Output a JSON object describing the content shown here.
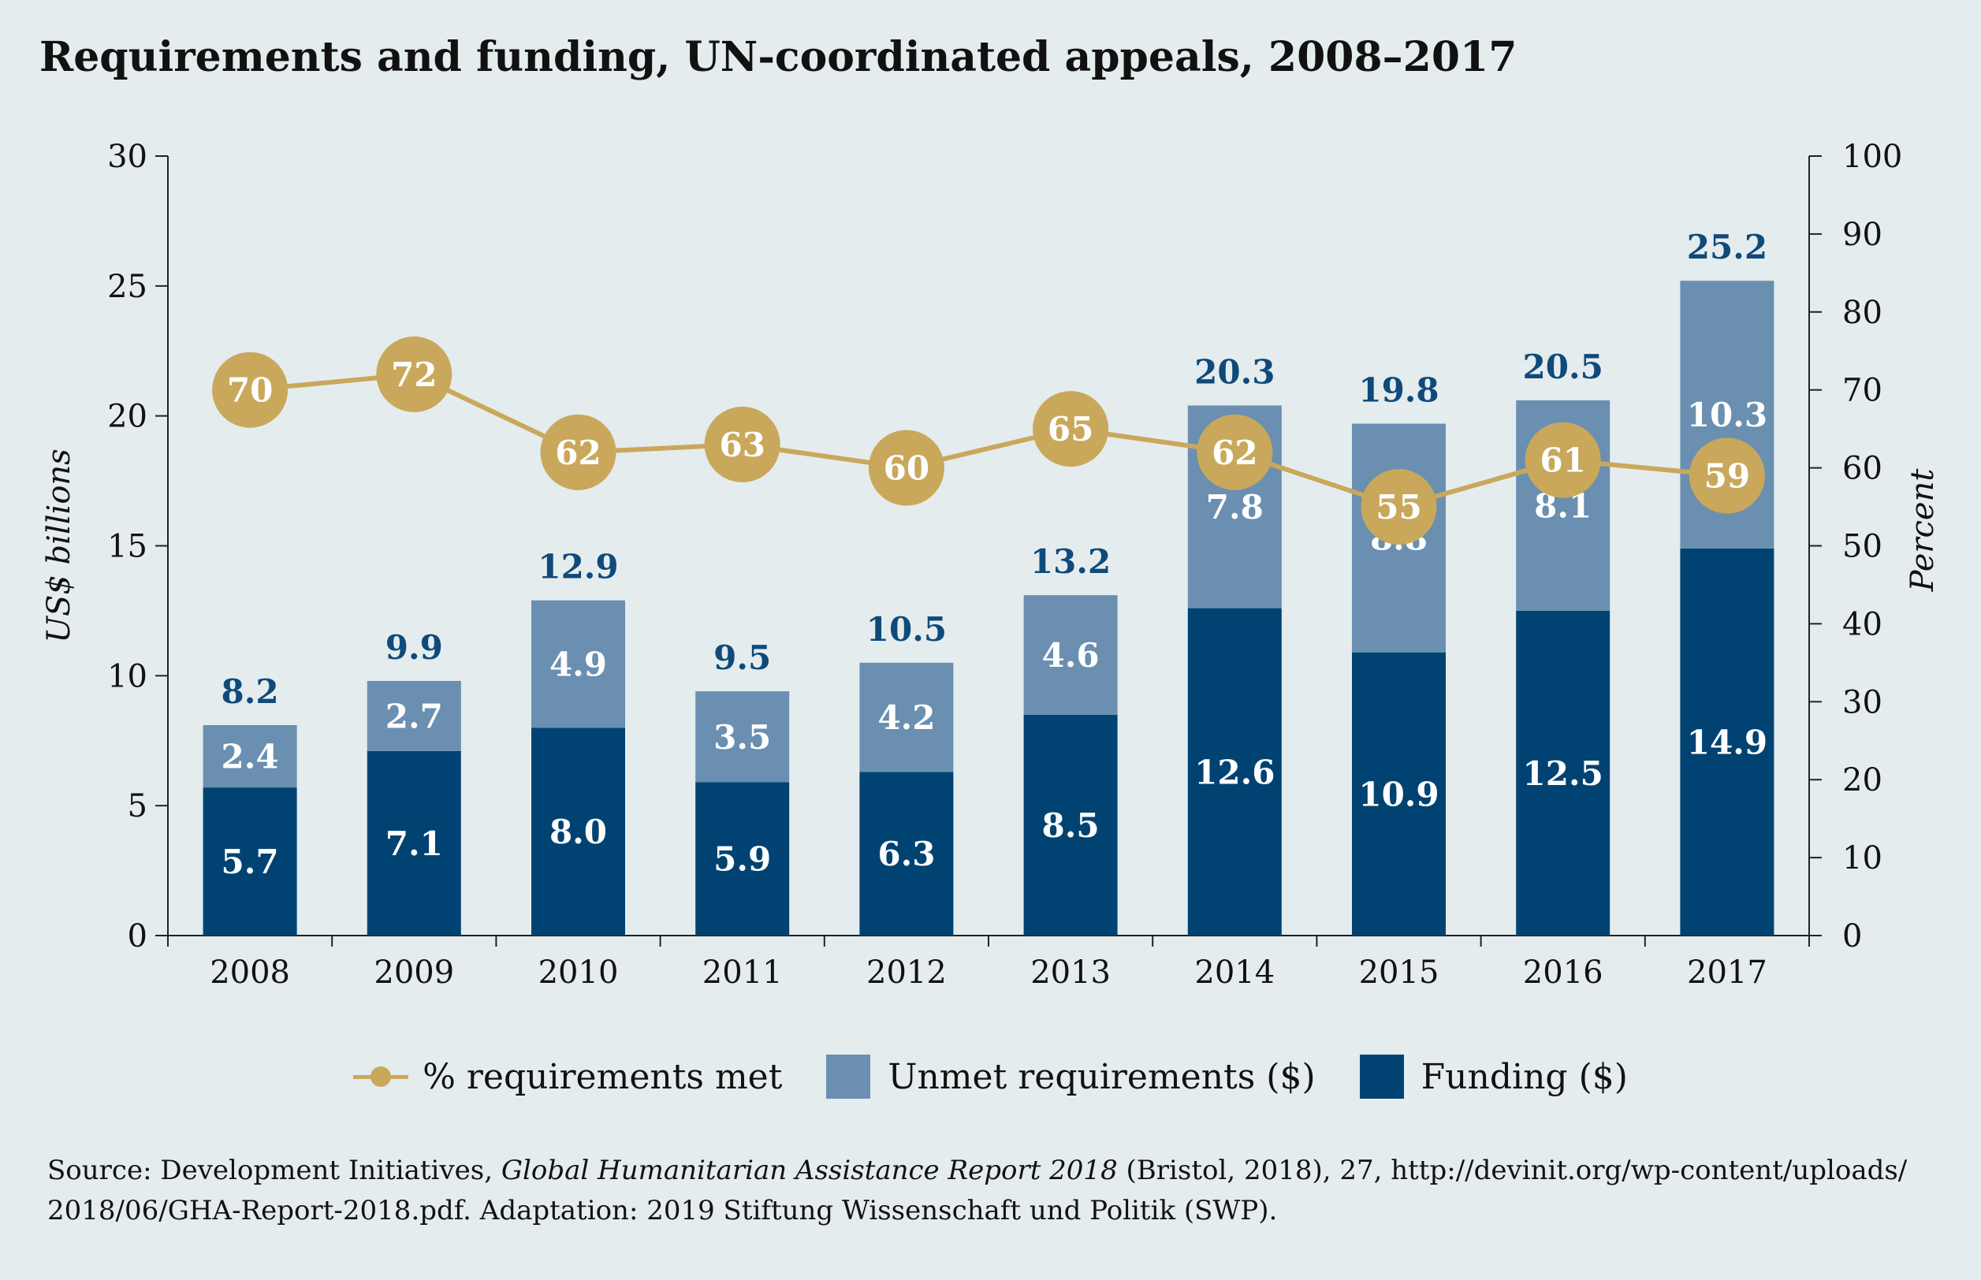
{
  "title": "Requirements and funding, UN-coordinated appeals, 2008–2017",
  "chart_data": {
    "type": "bar",
    "stacked": true,
    "categories": [
      "2008",
      "2009",
      "2010",
      "2011",
      "2012",
      "2013",
      "2014",
      "2015",
      "2016",
      "2017"
    ],
    "series": [
      {
        "name": "Funding ($)",
        "values": [
          5.7,
          7.1,
          8.0,
          5.9,
          6.3,
          8.5,
          12.6,
          10.9,
          12.5,
          14.9
        ],
        "color": "#004372",
        "axis": "left"
      },
      {
        "name": "Unmet requirements ($)",
        "values": [
          2.4,
          2.7,
          4.9,
          3.5,
          4.2,
          4.6,
          7.8,
          8.8,
          8.1,
          10.3
        ],
        "color": "#6a8fb0",
        "axis": "left"
      }
    ],
    "totals": [
      "8.2",
      "9.9",
      "12.9",
      "9.5",
      "10.5",
      "13.2",
      "20.3",
      "19.8",
      "20.5",
      "25.2"
    ],
    "funding_labels": [
      "5.7",
      "7.1",
      "8.0",
      "5.9",
      "6.3",
      "8.5",
      "12.6",
      "10.9",
      "12.5",
      "14.9"
    ],
    "unmet_labels": [
      "2.4",
      "2.7",
      "4.9",
      "3.5",
      "4.2",
      "4.6",
      "7.8",
      "8.8",
      "8.1",
      "10.3"
    ],
    "line": {
      "name": "% requirements met",
      "values": [
        70,
        72,
        62,
        63,
        60,
        65,
        62,
        55,
        61,
        59
      ],
      "color": "#c9a85b",
      "axis": "right"
    },
    "ylabel": "US$ billions",
    "y2label": "Percent",
    "ylim": [
      0,
      30
    ],
    "y2lim": [
      0,
      100
    ],
    "yticks": [
      "0",
      "5",
      "10",
      "15",
      "20",
      "25",
      "30"
    ],
    "y2ticks": [
      "0",
      "10",
      "20",
      "30",
      "40",
      "50",
      "60",
      "70",
      "80",
      "90",
      "100"
    ],
    "grid": false,
    "legend_position": "bottom"
  },
  "legend": {
    "line_label": "% requirements met",
    "unmet_label": "Unmet requirements ($)",
    "funding_label": "Funding ($)"
  },
  "source": {
    "part1": "Source: Development Initiatives, ",
    "italic": "Global Humanitarian Assistance Report 2018",
    "part2": " (Bristol, 2018), 27, http://devinit.org/wp-content/uploads/",
    "line2": "2018/06/GHA-Report-2018.pdf. Adaptation: 2019 Stiftung Wissenschaft und Politik (SWP)."
  }
}
